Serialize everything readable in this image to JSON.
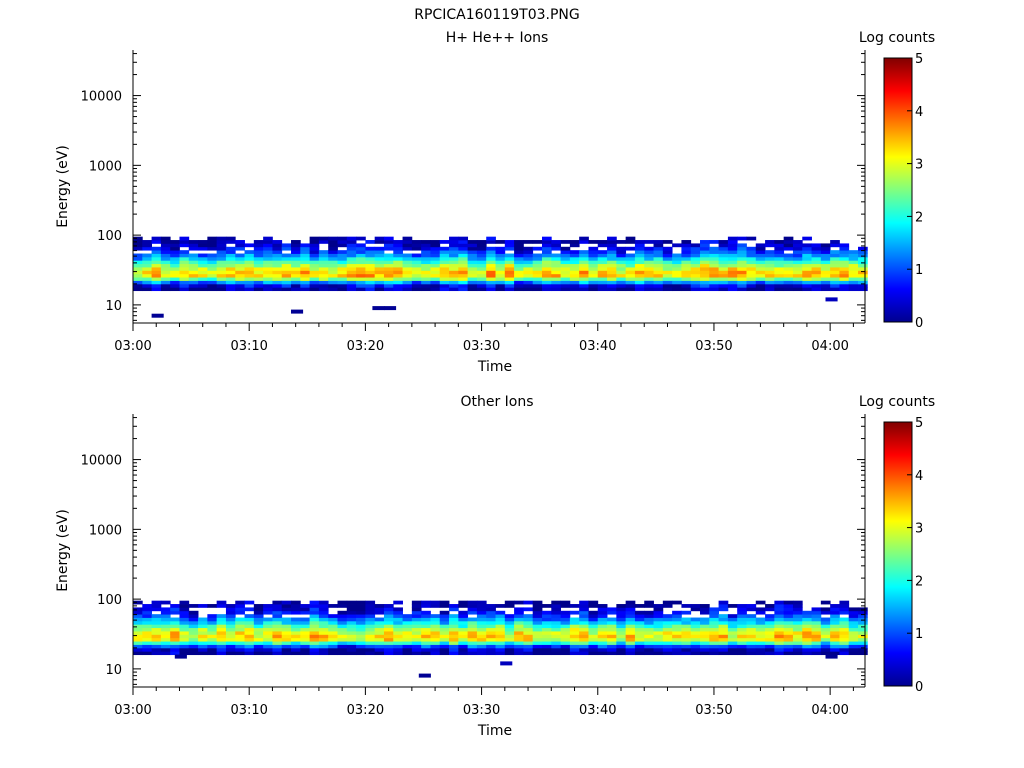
{
  "figure_title": "RPCICA160119T03.PNG",
  "chart_data": [
    {
      "type": "heatmap",
      "title": "H+ He++ Ions",
      "xlabel": "Time",
      "ylabel": "Energy (eV)",
      "x_ticks": [
        "03:00",
        "03:10",
        "03:20",
        "03:30",
        "03:40",
        "03:50",
        "04:00"
      ],
      "x_range": [
        "03:00",
        "04:03"
      ],
      "y_scale": "log",
      "y_ticks": [
        "10",
        "100",
        "1000",
        "10000"
      ],
      "y_range": [
        5.5,
        45000
      ],
      "colorbar": {
        "label": "Log counts",
        "ticks": [
          "0",
          "1",
          "2",
          "3",
          "4",
          "5"
        ],
        "range": [
          0,
          5
        ]
      },
      "band": {
        "energy_range_eV": [
          16,
          95
        ],
        "peak_energy_eV": 27,
        "peak_log_counts": 3.3
      },
      "isolated_points": [
        {
          "time": "03:02",
          "energy_eV": 7,
          "log_counts": 0.1
        },
        {
          "time": "03:14",
          "energy_eV": 8,
          "log_counts": 0.1
        },
        {
          "time": "03:21",
          "energy_eV": 9,
          "log_counts": 0.1
        },
        {
          "time": "03:22",
          "energy_eV": 9,
          "log_counts": 0.1
        },
        {
          "time": "04:00",
          "energy_eV": 12,
          "log_counts": 0.3
        }
      ]
    },
    {
      "type": "heatmap",
      "title": "Other Ions",
      "xlabel": "Time",
      "ylabel": "Energy (eV)",
      "x_ticks": [
        "03:00",
        "03:10",
        "03:20",
        "03:30",
        "03:40",
        "03:50",
        "04:00"
      ],
      "x_range": [
        "03:00",
        "04:03"
      ],
      "y_scale": "log",
      "y_ticks": [
        "10",
        "100",
        "1000",
        "10000"
      ],
      "y_range": [
        5.5,
        45000
      ],
      "colorbar": {
        "label": "Log counts",
        "ticks": [
          "0",
          "1",
          "2",
          "3",
          "4",
          "5"
        ],
        "range": [
          0,
          5
        ]
      },
      "band": {
        "energy_range_eV": [
          16,
          95
        ],
        "peak_energy_eV": 28,
        "peak_log_counts": 3.2
      },
      "isolated_points": [
        {
          "time": "03:04",
          "energy_eV": 15,
          "log_counts": 0.1
        },
        {
          "time": "03:25",
          "energy_eV": 8,
          "log_counts": 0.1
        },
        {
          "time": "03:32",
          "energy_eV": 12,
          "log_counts": 0.3
        },
        {
          "time": "04:00",
          "energy_eV": 15,
          "log_counts": 0.1
        }
      ]
    }
  ]
}
